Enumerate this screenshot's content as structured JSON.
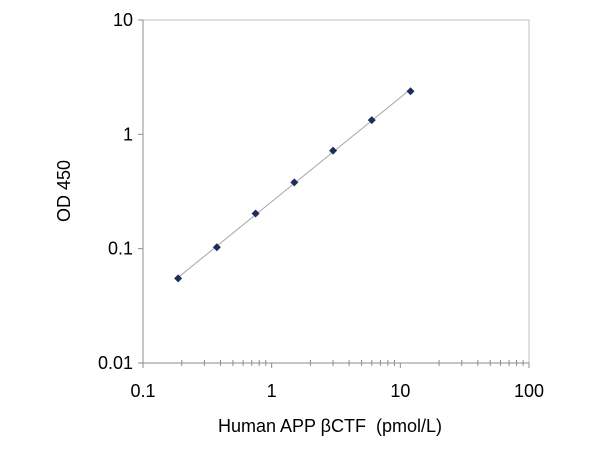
{
  "chart_data": {
    "type": "scatter",
    "title": "",
    "xlabel": "Human APP βCTF  (pmol/L)",
    "ylabel": "OD 450",
    "x_scale": "log",
    "y_scale": "log",
    "xlim": [
      0.1,
      100
    ],
    "ylim": [
      0.01,
      10
    ],
    "x_ticks": [
      0.1,
      1,
      10,
      100
    ],
    "x_tick_labels": [
      "0.1",
      "1",
      "10",
      "100"
    ],
    "y_ticks": [
      0.01,
      0.1,
      1,
      10
    ],
    "y_tick_labels": [
      "0.01",
      "0.1",
      "1",
      "10"
    ],
    "grid": false,
    "legend": "none",
    "marker": "diamond",
    "trendline": "power",
    "colors": {
      "marker": "#1f2d5c",
      "trendline": "#a8a8a8",
      "axis": "#8c8c8c",
      "plot_border": "#c0c0c0"
    },
    "series": [
      {
        "x": [
          0.1875,
          0.375,
          0.75,
          1.5,
          3,
          6,
          12
        ],
        "y": [
          0.055,
          0.103,
          0.203,
          0.38,
          0.72,
          1.33,
          2.38
        ]
      }
    ]
  }
}
